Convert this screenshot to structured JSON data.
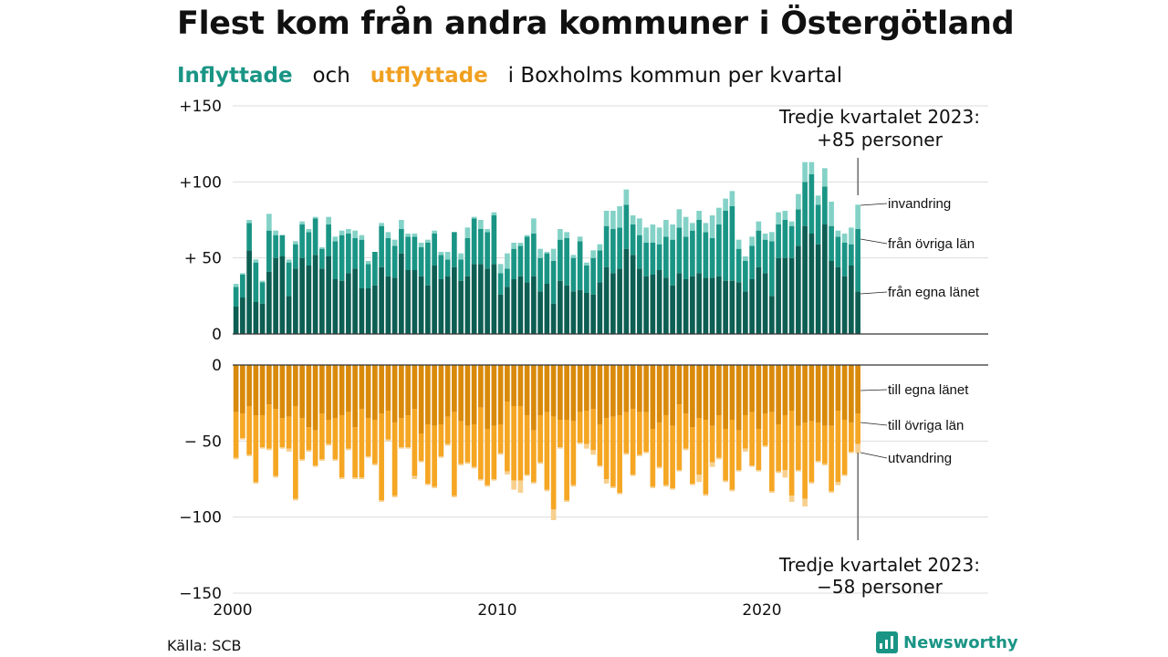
{
  "title": "Flest kom från andra kommuner i Östergötland",
  "subtitle": {
    "in_word": "Inflyttade",
    "och": "och",
    "out_word": "utflyttade",
    "rest": "i Boxholms kommun per kvartal"
  },
  "source": "Källa: SCB",
  "brand": "Newsworthy",
  "colors": {
    "in_lan": "#0d5e53",
    "in_ovriga": "#1a9585",
    "in_invandring": "#84d2c7",
    "out_lan": "#d98a0b",
    "out_ovriga": "#f5a623",
    "out_utvandring": "#f7d08f"
  },
  "annotations": {
    "top_line1": "Tredje kvartalet 2023:",
    "top_line2": "+85 personer",
    "bottom_line1": "Tredje kvartalet 2023:",
    "bottom_line2": "−58 personer"
  },
  "segment_labels": {
    "invandring": "invandring",
    "fran_ovriga": "från övriga län",
    "fran_egna": "från egna länet",
    "till_egna": "till egna länet",
    "till_ovriga": "till övriga län",
    "utvandring": "utvandring"
  },
  "chart_data": {
    "type": "bar",
    "stacked": true,
    "x_start": "2000-Q1",
    "x_end": "2023-Q3",
    "x_ticks": [
      "2000",
      "2010",
      "2020"
    ],
    "y_top_ticks": [
      "+150",
      "+100",
      "+ 50",
      "0"
    ],
    "y_top_values": [
      150,
      100,
      50,
      0
    ],
    "y_bottom_ticks": [
      "0",
      "− 50",
      "−100",
      "−150"
    ],
    "y_bottom_values": [
      0,
      -50,
      -100,
      -150
    ],
    "ylim_in": [
      0,
      150
    ],
    "ylim_out": [
      -150,
      0
    ],
    "series_in": [
      {
        "name": "från egna länet",
        "values": [
          18,
          24,
          55,
          21,
          20,
          41,
          50,
          51,
          25,
          43,
          50,
          45,
          52,
          43,
          51,
          36,
          35,
          40,
          43,
          30,
          30,
          32,
          44,
          38,
          37,
          53,
          42,
          42,
          38,
          32,
          45,
          36,
          38,
          44,
          35,
          38,
          46,
          46,
          43,
          46,
          26,
          31,
          36,
          38,
          34,
          38,
          28,
          33,
          20,
          35,
          32,
          28,
          29,
          27,
          26,
          34,
          44,
          40,
          43,
          56,
          52,
          43,
          38,
          39,
          42,
          37,
          32,
          40,
          36,
          38,
          40,
          37,
          37,
          38,
          35,
          35,
          34,
          28,
          36,
          44,
          40,
          25,
          50,
          50,
          50,
          58,
          71,
          66,
          59,
          72,
          48,
          44,
          38,
          45,
          28
        ]
      },
      {
        "name": "från övriga län",
        "values": [
          13,
          15,
          18,
          26,
          14,
          27,
          15,
          14,
          22,
          16,
          22,
          22,
          24,
          13,
          21,
          25,
          30,
          26,
          20,
          32,
          16,
          22,
          27,
          25,
          21,
          16,
          22,
          22,
          19,
          28,
          21,
          16,
          11,
          23,
          14,
          25,
          30,
          23,
          24,
          32,
          14,
          12,
          20,
          20,
          30,
          28,
          22,
          20,
          28,
          27,
          31,
          22,
          32,
          18,
          24,
          21,
          27,
          29,
          27,
          29,
          20,
          22,
          22,
          21,
          17,
          27,
          30,
          30,
          28,
          30,
          35,
          30,
          26,
          34,
          46,
          49,
          22,
          20,
          22,
          24,
          22,
          36,
          22,
          25,
          21,
          24,
          29,
          39,
          26,
          25,
          23,
          20,
          22,
          14,
          41
        ]
      },
      {
        "name": "invandring",
        "values": [
          2,
          1,
          2,
          2,
          1,
          11,
          3,
          0,
          2,
          2,
          2,
          2,
          1,
          1,
          5,
          3,
          3,
          3,
          5,
          3,
          2,
          0,
          2,
          4,
          4,
          6,
          2,
          2,
          3,
          2,
          2,
          2,
          5,
          0,
          4,
          7,
          1,
          6,
          2,
          2,
          6,
          10,
          4,
          2,
          1,
          10,
          6,
          1,
          8,
          7,
          4,
          2,
          3,
          2,
          5,
          4,
          10,
          12,
          14,
          10,
          6,
          11,
          10,
          12,
          11,
          11,
          10,
          12,
          13,
          5,
          6,
          6,
          15,
          11,
          8,
          10,
          6,
          3,
          6,
          6,
          4,
          6,
          8,
          6,
          3,
          10,
          13,
          8,
          6,
          12,
          16,
          4,
          6,
          11,
          16
        ]
      }
    ],
    "series_out": [
      {
        "name": "till egna länet",
        "values": [
          -31,
          -32,
          -27,
          -33,
          -33,
          -26,
          -29,
          -35,
          -34,
          -27,
          -35,
          -41,
          -43,
          -32,
          -36,
          -35,
          -33,
          -31,
          -41,
          -29,
          -35,
          -36,
          -32,
          -30,
          -38,
          -35,
          -33,
          -29,
          -45,
          -39,
          -40,
          -39,
          -34,
          -31,
          -37,
          -40,
          -39,
          -28,
          -42,
          -40,
          -39,
          -24,
          -27,
          -27,
          -33,
          -43,
          -33,
          -31,
          -34,
          -36,
          -36,
          -37,
          -31,
          -30,
          -29,
          -39,
          -35,
          -34,
          -33,
          -31,
          -29,
          -31,
          -31,
          -42,
          -38,
          -33,
          -40,
          -26,
          -32,
          -41,
          -35,
          -36,
          -40,
          -33,
          -42,
          -36,
          -43,
          -33,
          -31,
          -42,
          -32,
          -31,
          -39,
          -33,
          -30,
          -40,
          -38,
          -37,
          -38,
          -40,
          -40,
          -30,
          -36,
          -38,
          -32
        ]
      },
      {
        "name": "till övriga län",
        "values": [
          -30,
          -16,
          -32,
          -44,
          -21,
          -29,
          -44,
          -19,
          -21,
          -61,
          -27,
          -15,
          -23,
          -30,
          -16,
          -27,
          -41,
          -24,
          -33,
          -45,
          -25,
          -29,
          -57,
          -19,
          -48,
          -19,
          -21,
          -44,
          -18,
          -39,
          -40,
          -21,
          -18,
          -55,
          -28,
          -24,
          -28,
          -47,
          -37,
          -35,
          -19,
          -46,
          -49,
          -49,
          -39,
          -34,
          -31,
          -51,
          -61,
          -18,
          -53,
          -42,
          -20,
          -22,
          -27,
          -27,
          -40,
          -46,
          -51,
          -27,
          -43,
          -28,
          -26,
          -38,
          -29,
          -46,
          -41,
          -43,
          -23,
          -37,
          -37,
          -49,
          -24,
          -28,
          -34,
          -46,
          -26,
          -22,
          -35,
          -27,
          -21,
          -52,
          -31,
          -36,
          -56,
          -29,
          -50,
          -40,
          -25,
          -25,
          -43,
          -47,
          -36,
          -19,
          -20
        ]
      },
      {
        "name": "utvandring",
        "values": [
          -1,
          -1,
          -1,
          -1,
          -1,
          -1,
          -1,
          -1,
          -2,
          -1,
          -1,
          -1,
          -1,
          -1,
          -1,
          -1,
          -1,
          -1,
          -1,
          -1,
          -1,
          -1,
          -1,
          -1,
          -1,
          -1,
          -1,
          -2,
          -1,
          -1,
          -1,
          -1,
          -1,
          -1,
          -1,
          -1,
          -1,
          -1,
          -1,
          -1,
          -1,
          -2,
          -6,
          -8,
          -1,
          -1,
          -1,
          -1,
          -7,
          -1,
          -1,
          -1,
          -1,
          -3,
          -3,
          -1,
          -3,
          -1,
          -1,
          -1,
          -1,
          -1,
          -1,
          -1,
          -1,
          -1,
          -1,
          -1,
          -1,
          -1,
          -5,
          -1,
          -3,
          -1,
          -1,
          -1,
          -1,
          -2,
          -1,
          -1,
          -1,
          -1,
          -1,
          -5,
          -4,
          -1,
          -5,
          -1,
          -1,
          -1,
          -1,
          -2,
          -1,
          -1,
          -6
        ]
      }
    ]
  }
}
